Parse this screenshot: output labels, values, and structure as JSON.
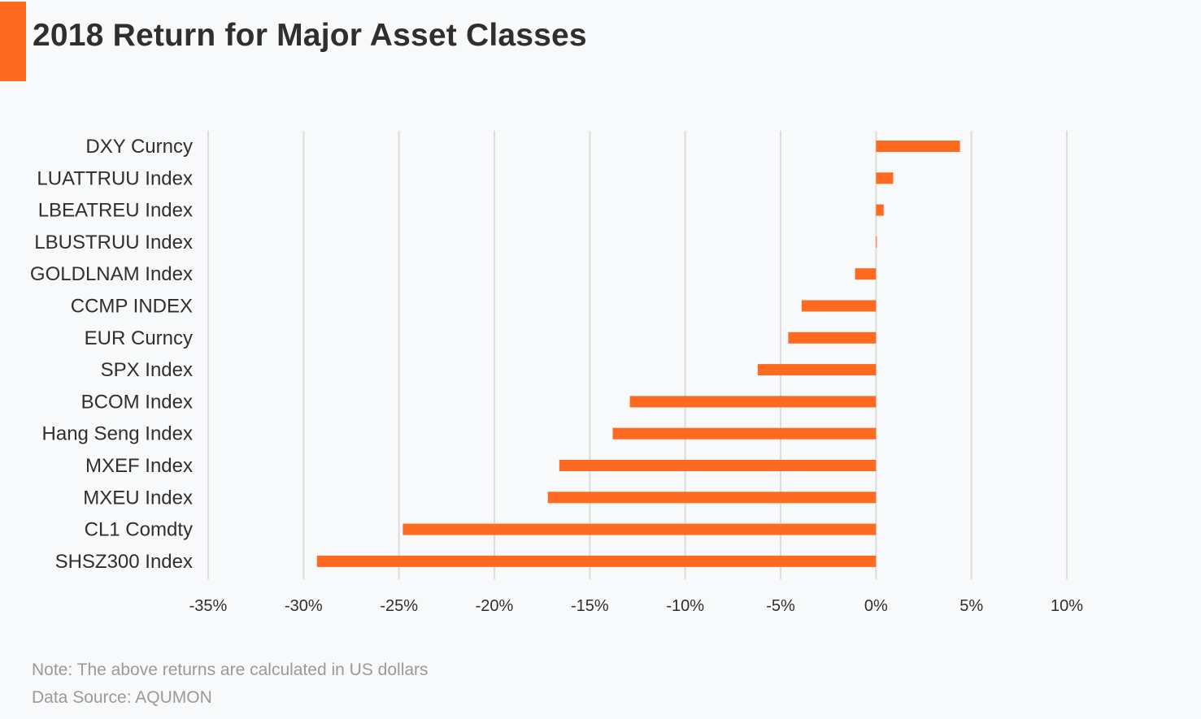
{
  "header": {
    "title": "2018 Return for Major Asset Classes"
  },
  "footer": {
    "note": "Note: The above returns are calculated in US dollars",
    "source": "Data Source: AQUMON"
  },
  "colors": {
    "accent": "#ff6a21",
    "bar": "#ff6a21",
    "grid": "#dcdcdc",
    "text": "#2f2f2f",
    "muted": "#9a9a9a",
    "background": "#f7f9fa"
  },
  "chart_data": {
    "type": "bar",
    "orientation": "horizontal",
    "title": "2018 Return for Major Asset Classes",
    "xlabel": "",
    "ylabel": "",
    "xlim": [
      -35,
      10
    ],
    "x_ticks": [
      -35,
      -30,
      -25,
      -20,
      -15,
      -10,
      -5,
      0,
      5,
      10
    ],
    "x_tick_labels": [
      "-35%",
      "-30%",
      "-25%",
      "-20%",
      "-15%",
      "-10%",
      "-5%",
      "0%",
      "5%",
      "10%"
    ],
    "grid": "vertical",
    "legend": "none",
    "categories": [
      "DXY Curncy",
      "LUATTRUU Index",
      "LBEATREU Index",
      "LBUSTRUU Index",
      "GOLDLNAM Index",
      "CCMP INDEX",
      "EUR Curncy",
      "SPX Index",
      "BCOM Index",
      "Hang Seng Index",
      "MXEF Index",
      "MXEU Index",
      "CL1 Comdty",
      "SHSZ300 Index"
    ],
    "values": [
      4.4,
      0.9,
      0.4,
      0.01,
      -1.1,
      -3.9,
      -4.6,
      -6.2,
      -12.9,
      -13.8,
      -16.6,
      -17.2,
      -24.8,
      -29.3
    ]
  }
}
